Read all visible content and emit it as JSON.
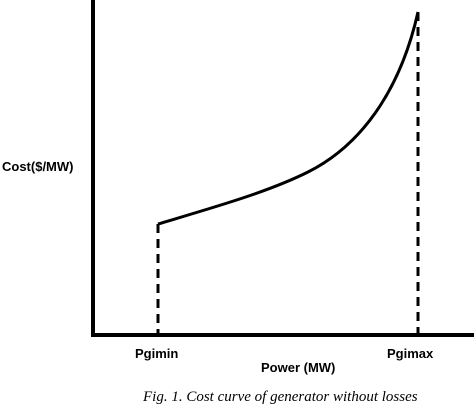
{
  "diagram": {
    "y_axis_label": "Cost($/MW)",
    "x_axis_label": "Power (MW)",
    "min_marker_label": "Pgimin",
    "max_marker_label": "Pgimax",
    "caption": "Fig. 1. Cost curve of generator without losses"
  },
  "colors": {
    "stroke": "#000000",
    "background": "#ffffff"
  }
}
